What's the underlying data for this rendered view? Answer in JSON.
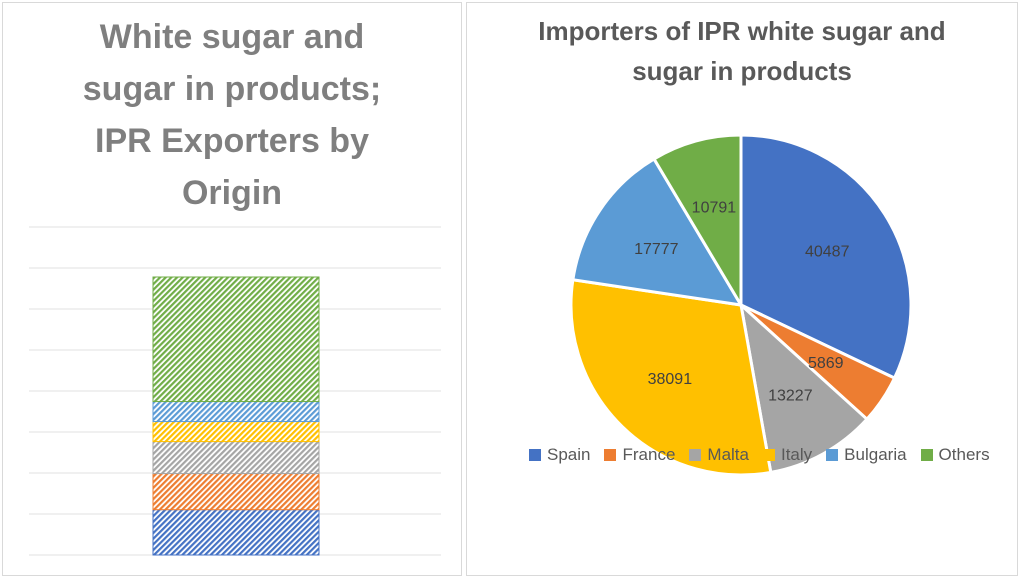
{
  "chart_data": [
    {
      "type": "bar",
      "title": "White sugar and sugar in products; IPR Exporters  by Origin",
      "title_lines": [
        "White sugar and",
        "sugar in products;",
        "IPR Exporters  by",
        "Origin"
      ],
      "stacked": true,
      "pattern": "diagonal-hatch",
      "grid": true,
      "segments_bottom_to_top": [
        {
          "color": "#4472c4",
          "share": 0.163
        },
        {
          "color": "#ed7d31",
          "share": 0.13
        },
        {
          "color": "#a5a5a5",
          "share": 0.115
        },
        {
          "color": "#ffc000",
          "share": 0.072
        },
        {
          "color": "#5b9bd5",
          "share": 0.072
        },
        {
          "color": "#70ad47",
          "share": 0.448
        }
      ],
      "legend": "none"
    },
    {
      "type": "pie",
      "title": "Importers of IPR white sugar and sugar in products",
      "title_lines": [
        "Importers of IPR white sugar and",
        "sugar in products"
      ],
      "slices": [
        {
          "label": "Spain",
          "value": 40487,
          "color": "#4472c4"
        },
        {
          "label": "France",
          "value": 5869,
          "color": "#ed7d31"
        },
        {
          "label": "Malta",
          "value": 13227,
          "color": "#a5a5a5"
        },
        {
          "label": "Italy",
          "value": 38091,
          "color": "#ffc000"
        },
        {
          "label": "Bulgaria",
          "value": 17777,
          "color": "#5b9bd5"
        },
        {
          "label": "Others",
          "value": 10791,
          "color": "#70ad47"
        }
      ],
      "legend": "bottom"
    }
  ]
}
